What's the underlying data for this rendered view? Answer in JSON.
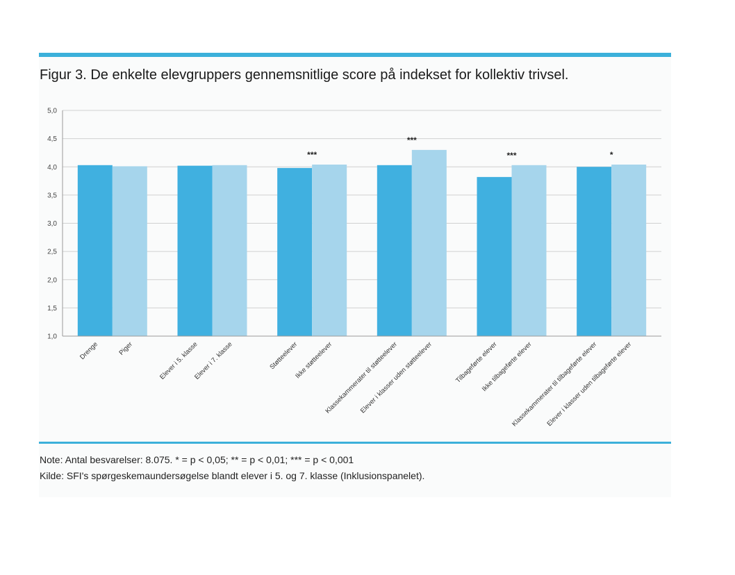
{
  "figure": {
    "title": "Figur 3. De enkelte elevgruppers gennemsnitlige score på indekset for kollektiv trivsel.",
    "note": "Note: Antal besvarelser: 8.075. * = p < 0,05; ** = p < 0,01; *** = p < 0,001",
    "source": "Kilde: SFI's spørgeskemaundersøgelse blandt elever i 5. og 7. klasse (Inklusionspanelet)."
  },
  "chart_data": {
    "type": "bar",
    "ylim": [
      1.0,
      5.0
    ],
    "yticks": [
      1.0,
      1.5,
      2.0,
      2.5,
      3.0,
      3.5,
      4.0,
      4.5,
      5.0
    ],
    "ytick_labels": [
      "1,0",
      "1,5",
      "2,0",
      "2,5",
      "3,0",
      "3,5",
      "4,0",
      "4,5",
      "5,0"
    ],
    "grid": true,
    "legend": "none",
    "colors": {
      "dark": "#40b0e0",
      "light": "#a6d5ec",
      "grid": "#d0d0d0"
    },
    "groups": [
      {
        "bars": [
          {
            "label": "Drenge",
            "value": 4.03
          },
          {
            "label": "Piger",
            "value": 4.01
          }
        ],
        "significance": ""
      },
      {
        "bars": [
          {
            "label": "Elever i 5. klasse",
            "value": 4.02
          },
          {
            "label": "Elever i 7. klasse",
            "value": 4.03
          }
        ],
        "significance": ""
      },
      {
        "bars": [
          {
            "label": "Støtteelever",
            "value": 3.98
          },
          {
            "label": "Ikke støtteelever",
            "value": 4.04
          }
        ],
        "significance": "***"
      },
      {
        "bars": [
          {
            "label": "Klassekammerater til støtteelever",
            "value": 4.03
          },
          {
            "label": "Elever i klasser uden støtteelever",
            "value": 4.3
          }
        ],
        "significance": "***"
      },
      {
        "bars": [
          {
            "label": "Tilbageførte elever",
            "value": 3.82
          },
          {
            "label": "Ikke tilbageførte elever",
            "value": 4.03
          }
        ],
        "significance": "***"
      },
      {
        "bars": [
          {
            "label": "Klassekammerater til tilbageførte elever",
            "value": 4.0
          },
          {
            "label": "Elever i klasser uden tilbageførte elever",
            "value": 4.04
          }
        ],
        "significance": "*"
      }
    ]
  }
}
